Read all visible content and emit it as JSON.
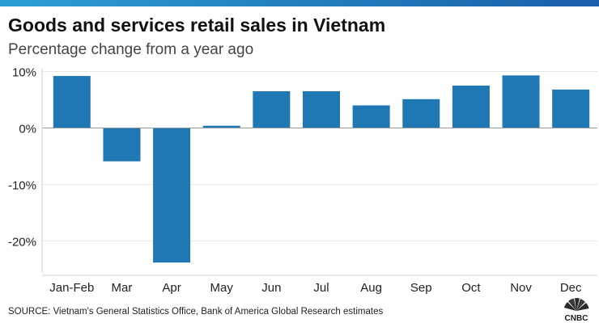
{
  "header": {
    "title": "Goods and services retail sales in Vietnam",
    "subtitle": "Percentage change from a year ago"
  },
  "footer": {
    "source": "SOURCE: Vietnam's General Statistics Office, Bank of America Global Research estimates",
    "logo_text": "CNBC"
  },
  "colors": {
    "bar": "#1f77b4",
    "top_bar_left": "#2c9fd6",
    "top_bar_right": "#1b5fa8",
    "grid": "#e6e6e6",
    "zero_line": "#9a9a9a"
  },
  "chart_data": {
    "type": "bar",
    "title": "Goods and services retail sales in Vietnam",
    "subtitle": "Percentage change from a year ago",
    "categories": [
      "Jan-Feb",
      "Mar",
      "Apr",
      "May",
      "Jun",
      "Jul",
      "Aug",
      "Sep",
      "Oct",
      "Nov",
      "Dec"
    ],
    "values": [
      9.2,
      -5.9,
      -23.8,
      0.4,
      6.5,
      6.5,
      4.0,
      5.1,
      7.5,
      9.3,
      6.8
    ],
    "ylim": [
      -25.5,
      10.5
    ],
    "yticks": [
      10,
      0,
      -10,
      -20
    ],
    "ytick_labels": [
      "10%",
      "0%",
      "-10%",
      "-20%"
    ],
    "grid": true,
    "xlabel": "",
    "ylabel": ""
  }
}
